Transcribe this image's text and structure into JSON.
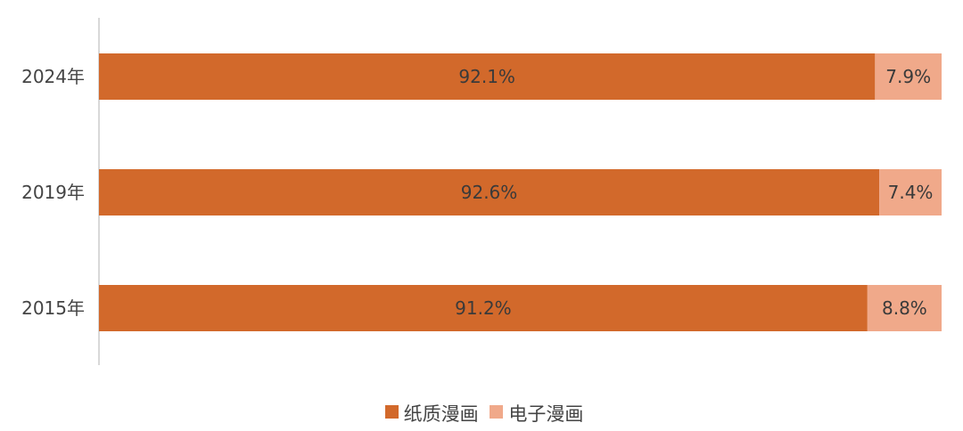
{
  "chart_data": {
    "type": "bar",
    "orientation": "horizontal",
    "stacked": true,
    "categories": [
      "2024年",
      "2019年",
      "2015年"
    ],
    "series": [
      {
        "name": "纸质漫画",
        "values": [
          92.1,
          92.6,
          91.2
        ],
        "color": "#D2692B",
        "labels": [
          "92.1%",
          "92.6%",
          "91.2%"
        ]
      },
      {
        "name": "电子漫画",
        "values": [
          7.9,
          7.4,
          8.8
        ],
        "color": "#F0A98A",
        "labels": [
          "7.9%",
          "7.4%",
          "8.8%"
        ]
      }
    ],
    "xlim": [
      0,
      100
    ],
    "grid": false,
    "legend_position": "bottom"
  }
}
